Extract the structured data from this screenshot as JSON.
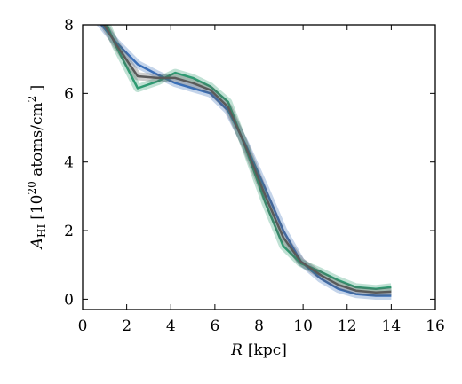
{
  "chart_data": {
    "type": "line",
    "xlabel": {
      "var": "R",
      "unit": "[kpc]"
    },
    "ylabel": {
      "var": "A",
      "sub": "HI",
      "pre": "[10",
      "sup": "20",
      "post": " atoms/cm",
      "sup2": "2",
      "end": " ]"
    },
    "xlim": [
      0,
      16
    ],
    "ylim": [
      -0.3,
      8
    ],
    "xticks": [
      "0",
      "2",
      "4",
      "6",
      "8",
      "10",
      "12",
      "14",
      "16"
    ],
    "yticks": [
      "0",
      "2",
      "4",
      "6",
      "8"
    ],
    "grid": false,
    "series": [
      {
        "color": "#3a6fb8",
        "x": [
          0.6,
          1.5,
          2.5,
          3.4,
          4.2,
          5.0,
          5.8,
          6.6,
          7.4,
          8.3,
          9.1,
          9.9,
          10.8,
          11.6,
          12.4,
          13.3,
          14.0
        ],
        "y": [
          8.2,
          7.5,
          6.85,
          6.55,
          6.3,
          6.15,
          6.0,
          5.5,
          4.5,
          3.2,
          2.0,
          1.1,
          0.6,
          0.3,
          0.15,
          0.1,
          0.1
        ]
      },
      {
        "color": "#2e9a72",
        "x": [
          0.9,
          1.5,
          2.5,
          3.4,
          4.2,
          5.0,
          5.8,
          6.6,
          7.4,
          8.3,
          9.1,
          9.9,
          10.8,
          11.6,
          12.4,
          13.3,
          14.0
        ],
        "y": [
          8.3,
          7.4,
          6.15,
          6.35,
          6.6,
          6.45,
          6.2,
          5.75,
          4.4,
          2.8,
          1.55,
          1.05,
          0.8,
          0.55,
          0.35,
          0.3,
          0.35
        ]
      },
      {
        "color": "#5a5a5a",
        "x": [
          0.8,
          1.5,
          2.5,
          3.4,
          4.2,
          5.0,
          5.8,
          6.6,
          7.4,
          8.3,
          9.1,
          9.9,
          10.8,
          11.6,
          12.4,
          13.3,
          14.0
        ],
        "y": [
          8.2,
          7.45,
          6.5,
          6.45,
          6.45,
          6.3,
          6.1,
          5.6,
          4.45,
          3.0,
          1.8,
          1.1,
          0.7,
          0.42,
          0.25,
          0.2,
          0.22
        ]
      }
    ]
  }
}
